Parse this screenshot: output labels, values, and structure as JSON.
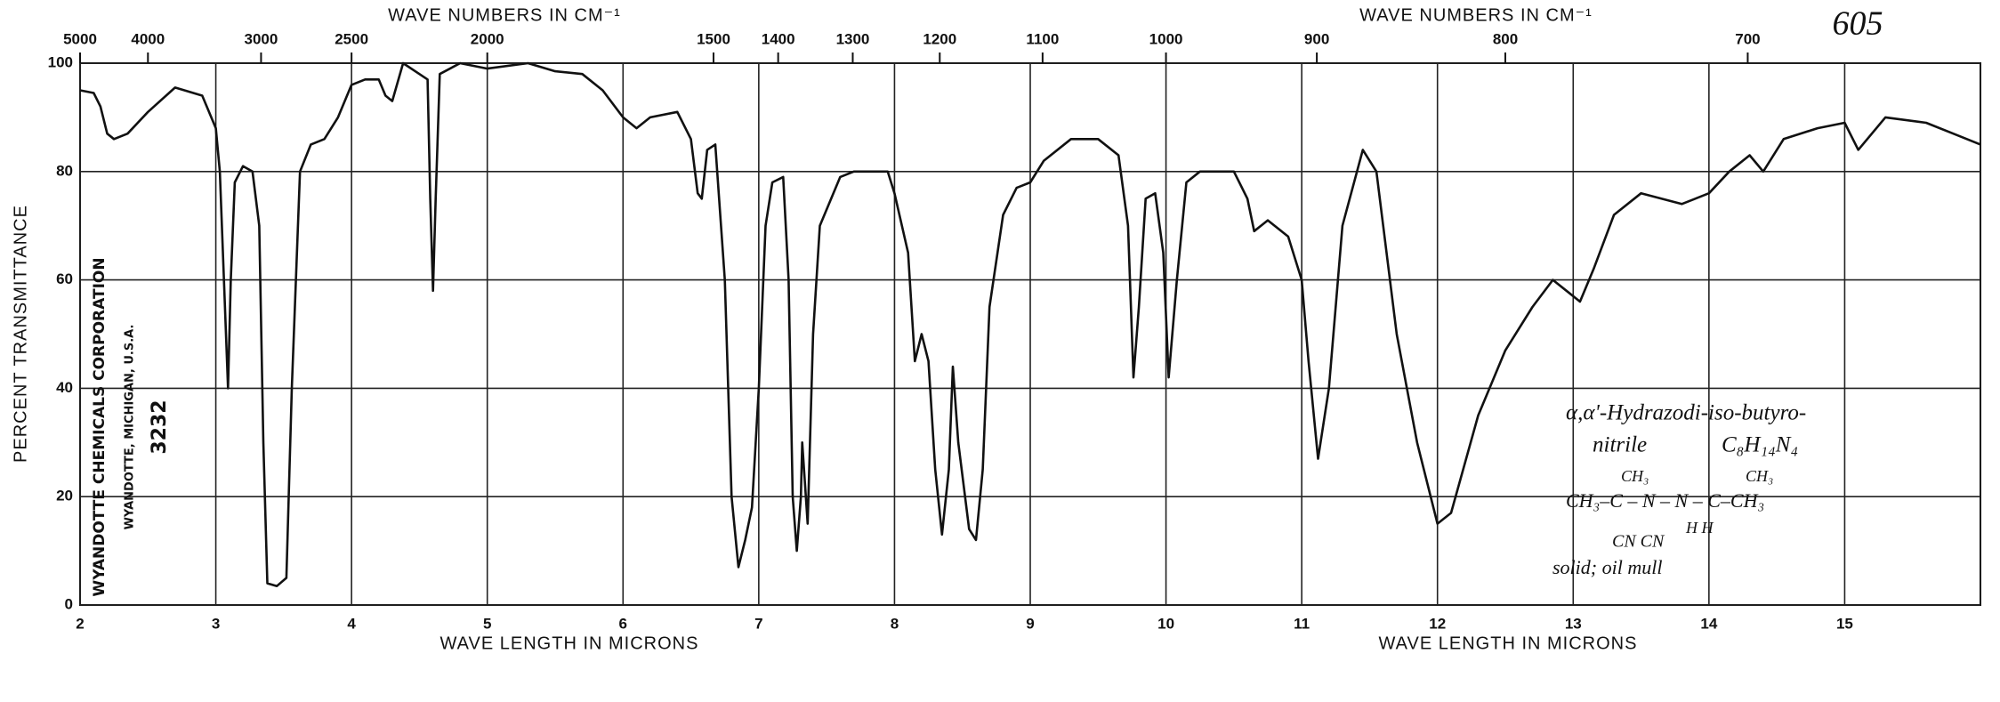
{
  "chart_data": {
    "type": "line",
    "xlabel": "WAVE LENGTH IN MICRONS",
    "x2label": "WAVE NUMBERS IN CM⁻¹",
    "ylabel": "PERCENT TRANSMITTANCE",
    "color": "#111111",
    "grid": true,
    "xlim": [
      2,
      16
    ],
    "ylim": [
      0,
      100
    ],
    "xticks": [
      2,
      3,
      4,
      5,
      6,
      7,
      8,
      9,
      10,
      11,
      12,
      13,
      14,
      15
    ],
    "yticks": [
      0,
      20,
      40,
      60,
      80,
      100
    ],
    "x2ticks": [
      5000,
      4000,
      3000,
      2500,
      2000,
      1500,
      1400,
      1300,
      1200,
      1100,
      1000,
      900,
      800,
      700
    ],
    "x": [
      2.0,
      2.1,
      2.15,
      2.2,
      2.25,
      2.35,
      2.5,
      2.7,
      2.9,
      3.0,
      3.03,
      3.06,
      3.09,
      3.11,
      3.14,
      3.2,
      3.27,
      3.32,
      3.35,
      3.38,
      3.45,
      3.52,
      3.56,
      3.62,
      3.7,
      3.8,
      3.9,
      4.0,
      4.1,
      4.2,
      4.25,
      4.3,
      4.38,
      4.5,
      4.56,
      4.58,
      4.6,
      4.62,
      4.65,
      4.8,
      5.0,
      5.3,
      5.5,
      5.7,
      5.85,
      6.0,
      6.1,
      6.2,
      6.4,
      6.5,
      6.55,
      6.58,
      6.62,
      6.68,
      6.75,
      6.8,
      6.85,
      6.9,
      6.95,
      7.0,
      7.05,
      7.1,
      7.18,
      7.22,
      7.25,
      7.28,
      7.31,
      7.32,
      7.36,
      7.4,
      7.45,
      7.6,
      7.7,
      7.8,
      7.95,
      8.0,
      8.1,
      8.15,
      8.2,
      8.25,
      8.3,
      8.35,
      8.4,
      8.43,
      8.47,
      8.55,
      8.6,
      8.65,
      8.7,
      8.8,
      8.9,
      9.0,
      9.1,
      9.3,
      9.5,
      9.65,
      9.72,
      9.76,
      9.8,
      9.85,
      9.92,
      9.98,
      10.02,
      10.08,
      10.15,
      10.25,
      10.5,
      10.6,
      10.65,
      10.75,
      10.9,
      11.0,
      11.05,
      11.12,
      11.2,
      11.3,
      11.45,
      11.55,
      11.7,
      11.85,
      12.0,
      12.1,
      12.3,
      12.5,
      12.7,
      12.85,
      12.95,
      13.05,
      13.15,
      13.3,
      13.5,
      13.8,
      14.0,
      14.15,
      14.3,
      14.4,
      14.55,
      14.8,
      15.0,
      15.1,
      15.3,
      15.6,
      15.8,
      16.0
    ],
    "values": [
      95,
      94.5,
      92,
      87,
      86,
      87,
      91,
      95.5,
      94,
      88,
      80,
      60,
      40,
      60,
      78,
      81,
      80,
      70,
      30,
      4,
      3.5,
      5,
      40,
      80,
      85,
      86,
      90,
      96,
      97,
      97,
      94,
      93,
      100,
      98,
      97,
      75,
      58,
      75,
      98,
      100,
      99,
      100,
      98.5,
      98,
      95,
      90,
      88,
      90,
      91,
      86,
      76,
      75,
      84,
      85,
      60,
      20,
      7,
      12,
      18,
      40,
      70,
      78,
      79,
      60,
      20,
      10,
      20,
      30,
      15,
      50,
      70,
      79,
      80,
      80,
      80,
      76,
      65,
      45,
      50,
      45,
      25,
      13,
      25,
      44,
      30,
      14,
      12,
      25,
      55,
      72,
      77,
      78,
      82,
      86,
      86,
      83,
      70,
      42,
      55,
      75,
      76,
      65,
      42,
      60,
      78,
      80,
      80,
      75,
      69,
      71,
      68,
      60,
      45,
      27,
      40,
      70,
      84,
      80,
      50,
      30,
      15,
      17,
      35,
      47,
      55,
      60,
      58,
      56,
      62,
      72,
      76,
      74,
      76,
      80,
      83,
      80,
      86,
      88,
      89,
      84,
      90,
      89,
      87,
      85
    ],
    "annotations": [
      "605",
      "WYANDOTTE CHEMICALS CORPORATION",
      "WYANDOTTE, MICHIGAN, U.S.A.",
      "3232",
      "α,α'-Hydrazodi-iso-butyro-",
      "nitrile",
      "C₈H₁₄N₄",
      "CH₃",
      "CH₃",
      "CH₃–C – N – N – C–CH₃",
      "H      H",
      "CN                        CN",
      "solid; oil mull"
    ]
  }
}
